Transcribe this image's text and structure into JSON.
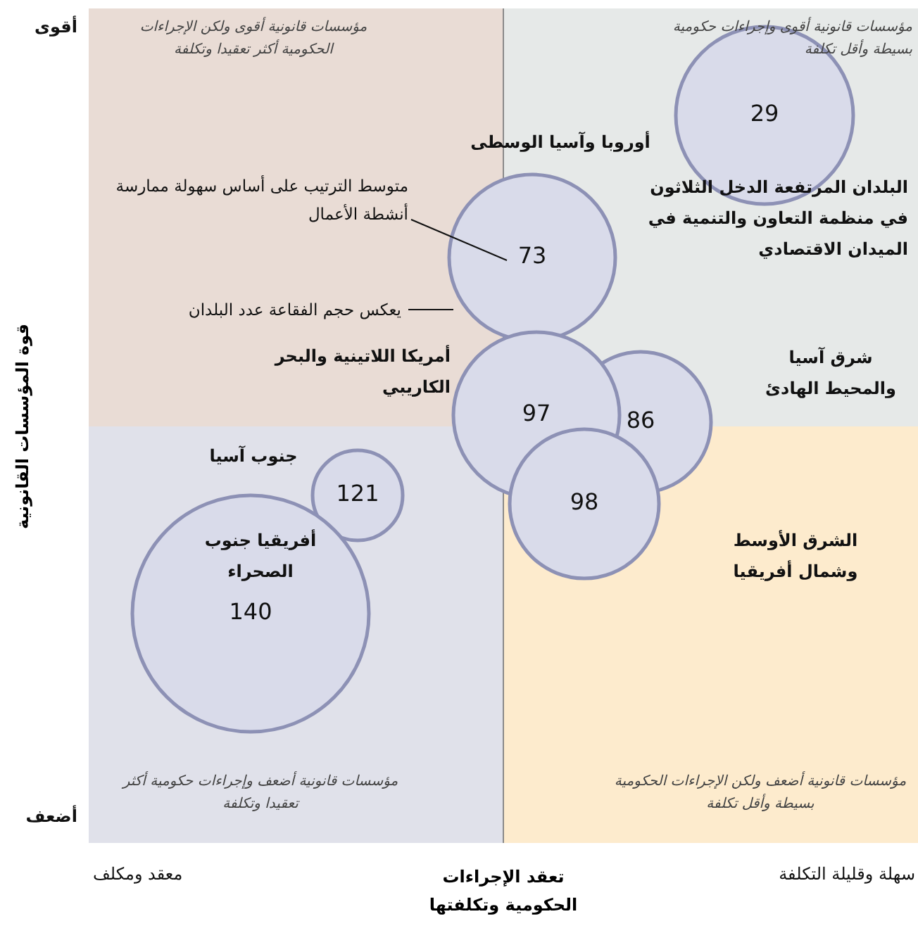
{
  "chart_data": {
    "type": "other",
    "xlabel": "تعقد الإجراءات الحكومية وتكلفتها",
    "ylabel": "قوة المؤسسات القانونية",
    "legend": false,
    "data_labels": true,
    "color": "#d9dbea",
    "categories": [
      "البلدان المرتفعة الدخل الثلاثون في منظمة التعاون والتنمية في الميدان الاقتصادي",
      "أوروبا وآسيا الوسطى",
      "شرق آسيا والمحيط الهادئ",
      "أمريكا اللاتينية والبحر الكاريبي",
      "الشرق الأوسط وشمال أفريقيا",
      "جنوب آسيا",
      "أفريقيا جنوب الصحراء"
    ],
    "values": [
      29,
      73,
      86,
      97,
      98,
      121,
      140
    ],
    "annotations": [
      "متوسط الترتيب على أساس سهولة ممارسة أنشطة الأعمال",
      "يعكس حجم الفقاعة عدد البلدان",
      "مؤسسات قانونية أقوى ولكن الإجراءات الحكومية أكثر تعقيدا وتكلفة",
      "مؤسسات قانونية أقوى وإجراءات حكومية بسيطة وأقل تكلفة",
      "مؤسسات قانونية أضعف وإجراءات حكومية أكثر تعقيدا وتكلفة",
      "مؤسسات قانونية أضعف ولكن الإجراءات الحكومية بسيطة وأقل تكلفة",
      "أقوى",
      "أضعف",
      "معقد ومكلف",
      "سهلة وقليلة التكلفة"
    ]
  }
}
